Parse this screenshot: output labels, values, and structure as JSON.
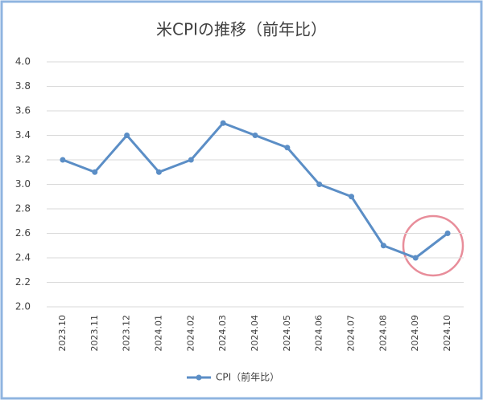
{
  "chart_data": {
    "type": "line",
    "title": "米CPIの推移（前年比）",
    "categories": [
      "2023.10",
      "2023.11",
      "2023.12",
      "2024.01",
      "2024.02",
      "2024.03",
      "2024.04",
      "2024.05",
      "2024.06",
      "2024.07",
      "2024.08",
      "2024.09",
      "2024.10"
    ],
    "series": [
      {
        "name": "CPI（前年比）",
        "color": "#5b8ec6",
        "values": [
          3.2,
          3.1,
          3.4,
          3.1,
          3.2,
          3.5,
          3.4,
          3.3,
          3.0,
          2.9,
          2.5,
          2.4,
          2.6
        ]
      }
    ],
    "ylim": [
      2.0,
      4.0
    ],
    "yticks": [
      {
        "value": 2.0,
        "label": "2.0"
      },
      2.2,
      2.4,
      2.6,
      2.8,
      {
        "value": 3.0,
        "label": "3.0"
      },
      3.2,
      3.4,
      3.6,
      3.8,
      {
        "value": 4.0,
        "label": "4.0"
      }
    ],
    "grid": true,
    "legend": "bottom"
  }
}
